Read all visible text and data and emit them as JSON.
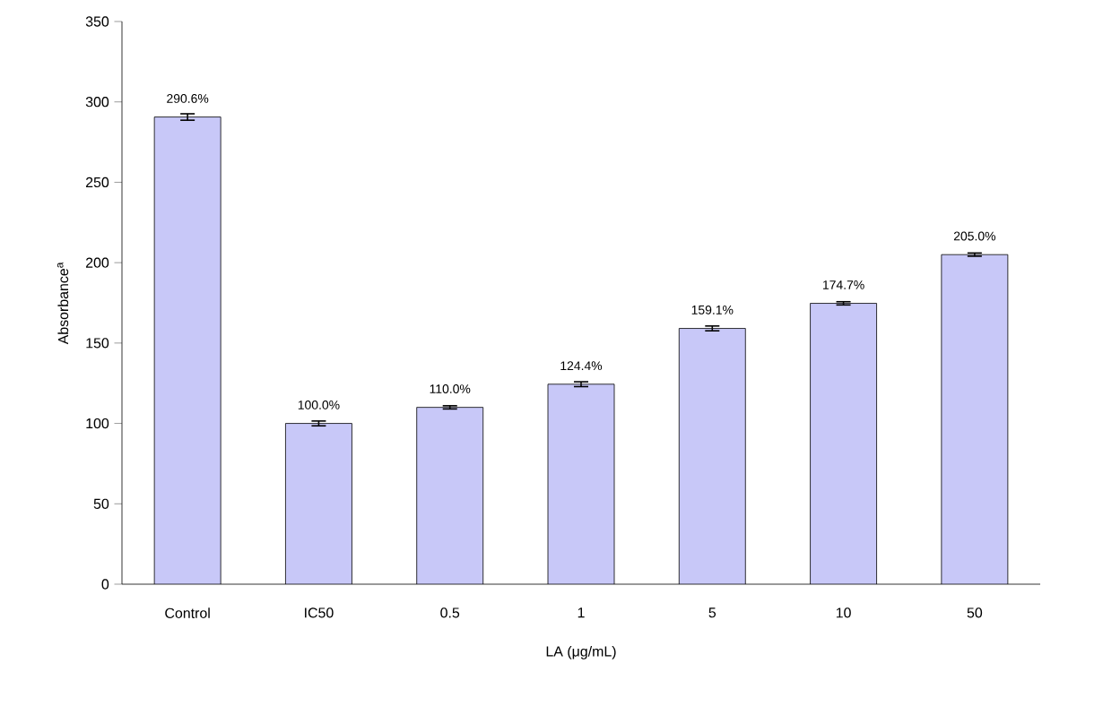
{
  "chart_data": {
    "type": "bar",
    "xlabel": "LA (μg/mL)",
    "ylabel": "Absorbance$^{a}$",
    "categories": [
      "Control",
      "IC50",
      "0.5",
      "1",
      "5",
      "10",
      "50"
    ],
    "values": [
      290.6,
      100.0,
      110.0,
      124.4,
      159.1,
      174.7,
      205.0
    ],
    "errors": [
      2,
      1.5,
      1,
      1.5,
      1.5,
      1,
      1
    ],
    "value_labels": [
      "290.6%",
      "100.0%",
      "110.0%",
      "124.4%",
      "159.1%",
      "174.7%",
      "205.0%"
    ],
    "color": "#c8c8f8",
    "ylim": [
      0,
      350
    ],
    "yticks": [
      0,
      50,
      100,
      150,
      200,
      250,
      300,
      350
    ],
    "grid": false
  }
}
